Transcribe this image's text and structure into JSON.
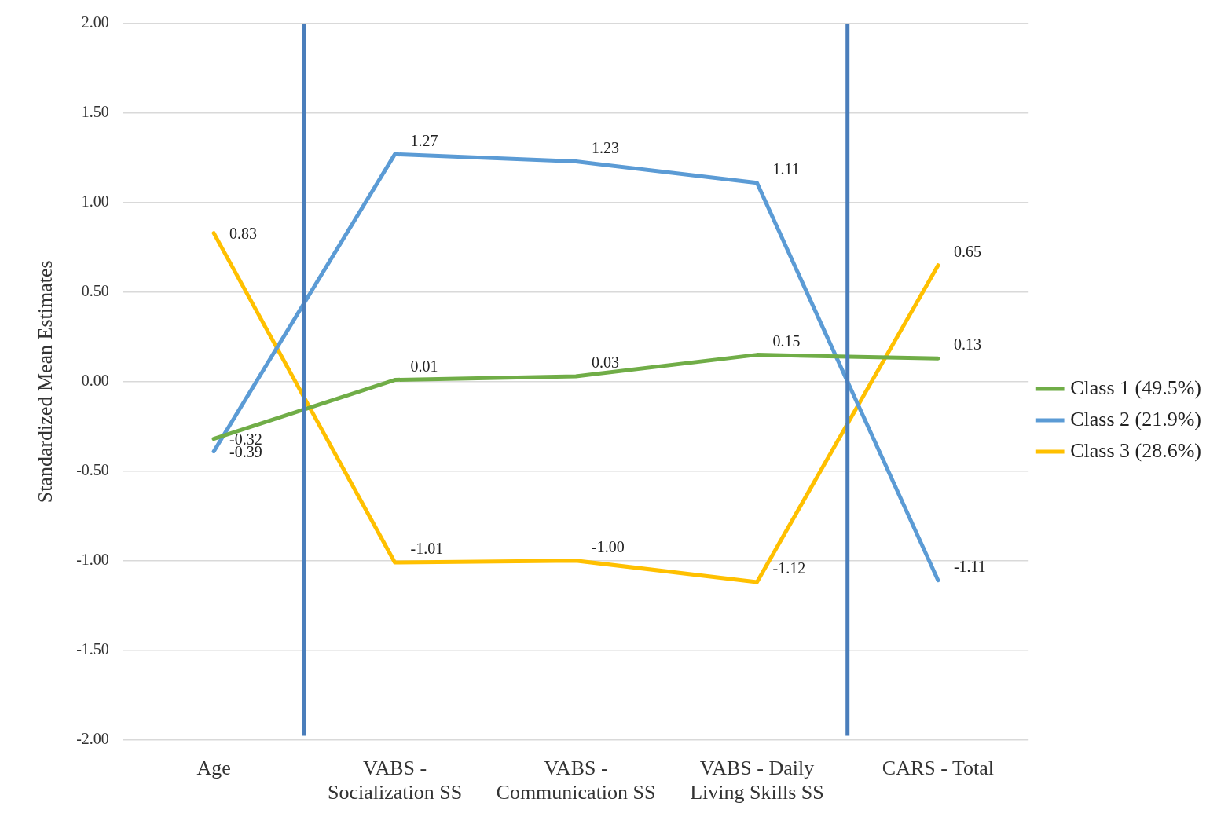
{
  "chart_data": {
    "type": "line",
    "ylabel": "Standardized Mean Estimates",
    "categories": [
      "Age",
      "VABS - Socialization SS",
      "VABS - Communication SS",
      "VABS - Daily Living Skills SS",
      "CARS - Total"
    ],
    "series": [
      {
        "name": "Class 1 (49.5%)",
        "color": "#70ad47",
        "values": [
          -0.32,
          0.01,
          0.03,
          0.15,
          0.13
        ],
        "value_labels": [
          "-0.32",
          "0.01",
          "0.03",
          "0.15",
          "0.13"
        ]
      },
      {
        "name": "Class 2 (21.9%)",
        "color": "#5b9bd5",
        "values": [
          -0.39,
          1.27,
          1.23,
          1.11,
          -1.11
        ],
        "value_labels": [
          "-0.39",
          "1.27",
          "1.23",
          "1.11",
          "-1.11"
        ]
      },
      {
        "name": "Class 3 (28.6%)",
        "color": "#ffc000",
        "values": [
          0.83,
          -1.01,
          -1.0,
          -1.12,
          0.65
        ],
        "value_labels": [
          "0.83",
          "-1.01",
          "-1.00",
          "-1.12",
          "0.65"
        ]
      }
    ],
    "ylim": [
      -2,
      2
    ],
    "yticks": [
      {
        "value": -2,
        "label": "-2.00"
      },
      {
        "value": -1.5,
        "label": "-1.50"
      },
      {
        "value": -1,
        "label": "-1.00"
      },
      {
        "value": -0.5,
        "label": "-0.50"
      },
      {
        "value": 0,
        "label": "0.00"
      },
      {
        "value": 0.5,
        "label": "0.50"
      },
      {
        "value": 1,
        "label": "1.00"
      },
      {
        "value": 1.5,
        "label": "1.50"
      },
      {
        "value": 2,
        "label": "2.00"
      }
    ],
    "grid": "y",
    "legend": "right",
    "marker": "none",
    "line_style": "solid"
  }
}
